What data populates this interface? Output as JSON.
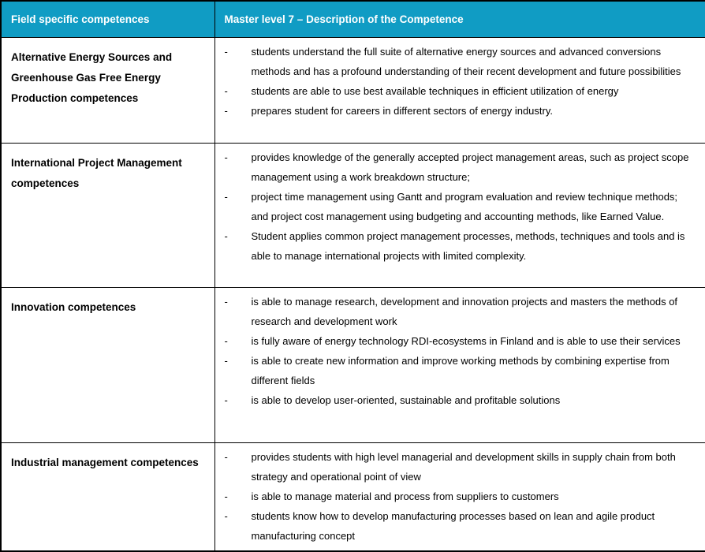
{
  "theme": {
    "header_bg": "#109CC4",
    "header_text_color": "#FFFFFF",
    "border_color": "#000000",
    "body_text_color": "#000000"
  },
  "table": {
    "bullet_marker": "-",
    "columns": [
      {
        "label": "Field specific competences"
      },
      {
        "label": "Master level 7 – Description of the Competence"
      }
    ],
    "rows": [
      {
        "competence": "Alternative Energy Sources and Greenhouse Gas Free Energy Production competences",
        "bullets": [
          "students understand the full suite of alternative energy sources and advanced conversions methods and has a profound understanding of their recent development and future possibilities",
          "students are able to use best available techniques in efficient utilization of energy",
          "prepares student for careers in different sectors of energy industry."
        ]
      },
      {
        "competence": "International Project Management competences",
        "bullets": [
          "provides knowledge of the generally accepted project management areas, such as project scope management using a work breakdown structure;",
          "project time management using Gantt and program evaluation and review technique methods; and project cost management using budgeting and accounting methods, like Earned Value.",
          "Student applies common project management processes, methods, techniques and tools and is able to manage international projects with limited complexity."
        ]
      },
      {
        "competence": "Innovation competences",
        "bullets": [
          "is able to manage research, development and innovation projects and masters the methods of research and development work",
          "is fully aware of energy technology RDI-ecosystems in Finland and is able to use their services",
          "is able to create new information and improve working methods by combining expertise from different fields",
          "is able to develop user-oriented, sustainable and profitable solutions"
        ]
      },
      {
        "competence": "Industrial management competences",
        "bullets": [
          "provides students with high level managerial and development skills in supply chain from both strategy and operational point of view",
          "is able to manage material and process from suppliers to customers",
          "students know how to develop manufacturing processes based on lean and agile product manufacturing concept"
        ]
      }
    ]
  }
}
